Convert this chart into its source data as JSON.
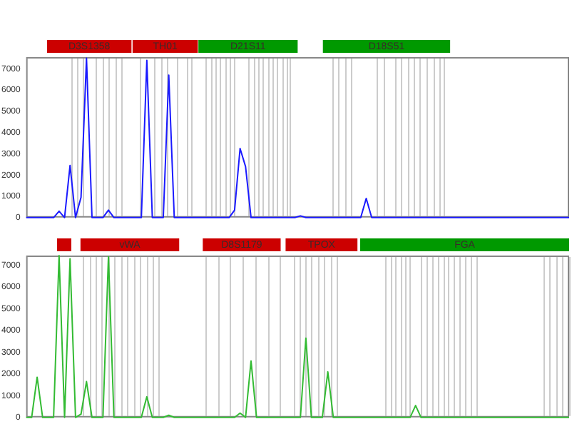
{
  "chart_data": [
    {
      "type": "line",
      "categories": [
        null,
        null,
        null,
        null,
        null,
        null,
        null,
        null,
        null,
        null,
        null,
        null,
        null,
        null,
        null,
        null,
        null,
        null,
        null,
        null,
        null,
        null,
        null,
        null,
        null,
        null,
        null,
        null,
        null,
        null,
        null,
        null,
        null,
        null,
        null,
        null,
        null,
        null,
        null,
        null,
        null,
        null,
        null,
        null,
        null,
        null,
        null,
        null,
        null,
        null,
        null,
        null,
        null,
        null,
        null,
        null,
        null,
        null,
        null,
        null,
        null,
        null,
        null,
        null,
        null,
        null,
        null,
        null,
        null,
        null,
        null,
        null,
        null,
        null,
        null,
        null,
        null,
        null,
        null,
        null,
        null,
        null,
        null,
        null,
        null,
        null,
        null,
        null,
        null,
        null,
        null,
        null,
        null,
        null,
        null,
        null,
        null,
        null,
        null,
        null
      ],
      "ylim": [
        0,
        7550
      ],
      "yticks": [
        0,
        1000,
        2000,
        3000,
        4000,
        5000,
        6000,
        7000
      ],
      "tick_labels": "y",
      "grid": "x",
      "legend": false,
      "marker": "none",
      "line_style": "solid",
      "annotations": [
        "D3S1358",
        "TH01",
        "D21S11",
        "D18S51"
      ],
      "series": [
        {
          "color": "#1a1aff",
          "values": [
            0,
            0,
            0,
            0,
            0,
            0,
            300,
            0,
            2450,
            0,
            950,
            7500,
            0,
            0,
            0,
            350,
            0,
            0,
            0,
            0,
            0,
            0,
            7400,
            0,
            0,
            0,
            6700,
            0,
            0,
            0,
            0,
            0,
            0,
            0,
            0,
            0,
            0,
            0,
            350,
            3250,
            2400,
            0,
            0,
            0,
            0,
            0,
            0,
            0,
            0,
            0,
            80,
            0,
            0,
            0,
            0,
            0,
            0,
            0,
            0,
            0,
            0,
            0,
            900,
            0,
            0,
            0,
            0,
            0,
            0,
            0,
            0,
            0,
            0,
            0,
            0,
            0,
            0,
            0,
            0,
            0,
            0,
            0,
            0,
            0,
            0,
            0,
            0,
            0,
            0,
            0,
            0,
            0,
            0,
            0,
            0,
            0,
            0,
            0,
            0,
            0
          ]
        }
      ]
    },
    {
      "type": "line",
      "categories": [
        null,
        null,
        null,
        null,
        null,
        null,
        null,
        null,
        null,
        null,
        null,
        null,
        null,
        null,
        null,
        null,
        null,
        null,
        null,
        null,
        null,
        null,
        null,
        null,
        null,
        null,
        null,
        null,
        null,
        null,
        null,
        null,
        null,
        null,
        null,
        null,
        null,
        null,
        null,
        null,
        null,
        null,
        null,
        null,
        null,
        null,
        null,
        null,
        null,
        null,
        null,
        null,
        null,
        null,
        null,
        null,
        null,
        null,
        null,
        null,
        null,
        null,
        null,
        null,
        null,
        null,
        null,
        null,
        null,
        null,
        null,
        null,
        null,
        null,
        null,
        null,
        null,
        null,
        null,
        null,
        null,
        null,
        null,
        null,
        null,
        null,
        null,
        null,
        null,
        null,
        null,
        null,
        null,
        null,
        null,
        null,
        null,
        null,
        null,
        null
      ],
      "ylim": [
        0,
        7450
      ],
      "yticks": [
        0,
        1000,
        2000,
        3000,
        4000,
        5000,
        6000,
        7000
      ],
      "tick_labels": "y",
      "grid": "x",
      "legend": false,
      "marker": "none",
      "line_style": "solid",
      "annotations": [
        "vWA",
        "D8S1179",
        "TPOX",
        "FGA"
      ],
      "series": [
        {
          "color": "#33bb33",
          "values": [
            0,
            0,
            1850,
            0,
            0,
            0,
            7450,
            0,
            7300,
            0,
            150,
            1650,
            0,
            0,
            0,
            7400,
            0,
            0,
            0,
            0,
            0,
            0,
            950,
            0,
            0,
            0,
            100,
            0,
            0,
            0,
            0,
            0,
            0,
            0,
            0,
            0,
            0,
            0,
            0,
            200,
            0,
            2600,
            0,
            0,
            0,
            0,
            0,
            0,
            0,
            0,
            0,
            3650,
            0,
            0,
            0,
            2100,
            0,
            0,
            0,
            0,
            0,
            0,
            0,
            0,
            0,
            0,
            0,
            0,
            0,
            0,
            0,
            550,
            0,
            0,
            0,
            0,
            0,
            0,
            0,
            0,
            0,
            0,
            0,
            0,
            0,
            0,
            0,
            0,
            0,
            0,
            0,
            0,
            0,
            0,
            0,
            0,
            0,
            0,
            0,
            0
          ]
        }
      ]
    }
  ]
}
